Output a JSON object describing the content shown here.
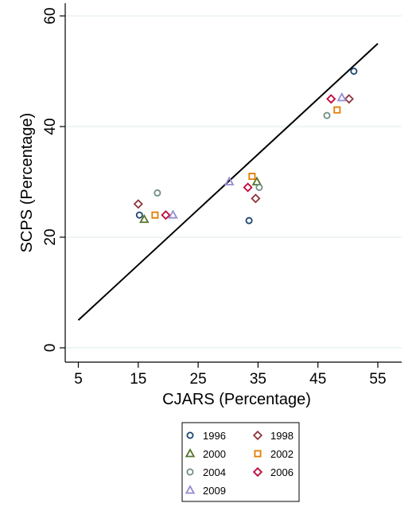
{
  "chart_data": {
    "type": "scatter",
    "title": "",
    "xlabel": "CJARS (Percentage)",
    "ylabel": "SCPS (Percentage)",
    "xlim": [
      5,
      58
    ],
    "ylim": [
      -2,
      62
    ],
    "xticks": [
      5,
      15,
      25,
      35,
      45,
      55
    ],
    "yticks": [
      0,
      20,
      40,
      60
    ],
    "grid": true,
    "legend_position": "bottom",
    "reference_line": {
      "x": [
        5,
        55
      ],
      "y": [
        5,
        55
      ]
    },
    "series": [
      {
        "name": "1996",
        "marker": "circle",
        "color": "#1a476f",
        "points": [
          [
            15.2,
            24
          ],
          [
            33.5,
            23
          ],
          [
            51,
            50
          ]
        ]
      },
      {
        "name": "1998",
        "marker": "diamond",
        "color": "#90353b",
        "points": [
          [
            15,
            26
          ],
          [
            34.6,
            27
          ],
          [
            50.2,
            45
          ]
        ]
      },
      {
        "name": "2000",
        "marker": "triangle",
        "color": "#55752f",
        "points": [
          [
            16,
            23.2
          ],
          [
            34.8,
            30
          ]
        ]
      },
      {
        "name": "2002",
        "marker": "square",
        "color": "#e37e00",
        "points": [
          [
            17.8,
            24
          ],
          [
            34,
            31
          ],
          [
            48.2,
            43
          ]
        ]
      },
      {
        "name": "2004",
        "marker": "circle",
        "color": "#6e8e84",
        "points": [
          [
            18.2,
            28
          ],
          [
            35.2,
            29
          ],
          [
            46.5,
            42
          ]
        ]
      },
      {
        "name": "2006",
        "marker": "diamond",
        "color": "#c10534",
        "points": [
          [
            19.6,
            24
          ],
          [
            33.3,
            29
          ],
          [
            47.2,
            45
          ]
        ]
      },
      {
        "name": "2009",
        "marker": "triangle",
        "color": "#938dd2",
        "points": [
          [
            20.8,
            24
          ],
          [
            30.2,
            30
          ],
          [
            49,
            45.2
          ]
        ]
      }
    ]
  }
}
